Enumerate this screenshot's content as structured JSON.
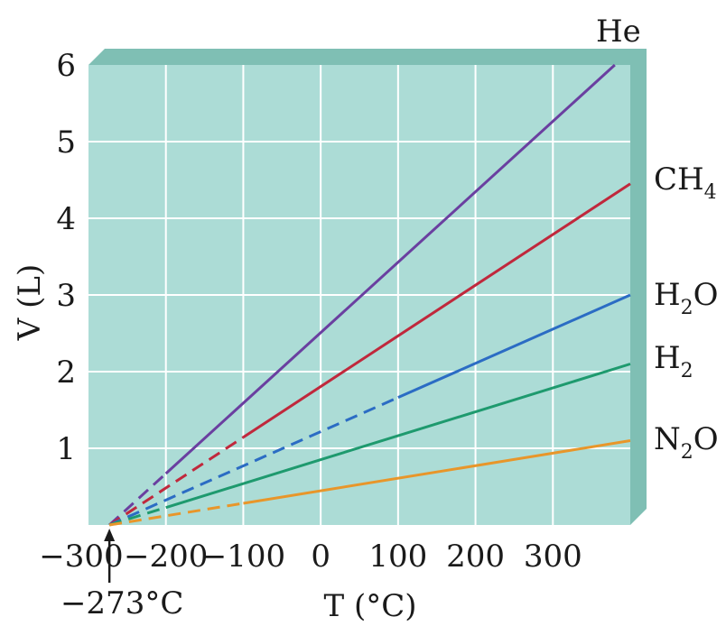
{
  "chart_data": {
    "type": "line",
    "xlabel": "T (°C)",
    "ylabel": "V (L)",
    "xlim": [
      -300,
      400
    ],
    "ylim": [
      0,
      6
    ],
    "x_ticks": [
      -300,
      -200,
      -100,
      0,
      100,
      200,
      300
    ],
    "x_tick_labels": [
      "−300",
      "−200",
      "−100",
      "0",
      "100",
      "200",
      "300"
    ],
    "y_ticks": [
      1,
      2,
      3,
      4,
      5,
      6
    ],
    "y_tick_labels": [
      "1",
      "2",
      "3",
      "4",
      "5",
      "6"
    ],
    "grid": true,
    "annotation": {
      "text": "−273°C",
      "x": -273
    },
    "extrapolated_style": "dashed",
    "colors": {
      "background": "#acdcd6",
      "grid": "#ffffff",
      "shadow": "#7fbfb4"
    },
    "series": [
      {
        "name": "He",
        "label_main": "He",
        "label_sub": "",
        "color": "#6a3fa0",
        "x": [
          -273,
          380
        ],
        "y": [
          0,
          6.0
        ],
        "dashed_until": null
      },
      {
        "name": "CH4",
        "label_main": "CH",
        "label_sub": "4",
        "color": "#c0283c",
        "x": [
          -273,
          400
        ],
        "y": [
          0,
          4.45
        ],
        "dashed_until": -100
      },
      {
        "name": "H2O",
        "label_main": "H",
        "label_sub": "2",
        "label_tail": "O",
        "color": "#2b6cc4",
        "x": [
          -273,
          400
        ],
        "y": [
          0,
          3.0
        ],
        "dashed_until": 100
      },
      {
        "name": "H2",
        "label_main": "H",
        "label_sub": "2",
        "color": "#1e9a6e",
        "x": [
          -273,
          400
        ],
        "y": [
          0,
          2.1
        ],
        "dashed_until": null
      },
      {
        "name": "N2O",
        "label_main": "N",
        "label_sub": "2",
        "label_tail": "O",
        "color": "#e8962a",
        "x": [
          -273,
          400
        ],
        "y": [
          0,
          1.1
        ],
        "dashed_until": -100
      }
    ]
  }
}
